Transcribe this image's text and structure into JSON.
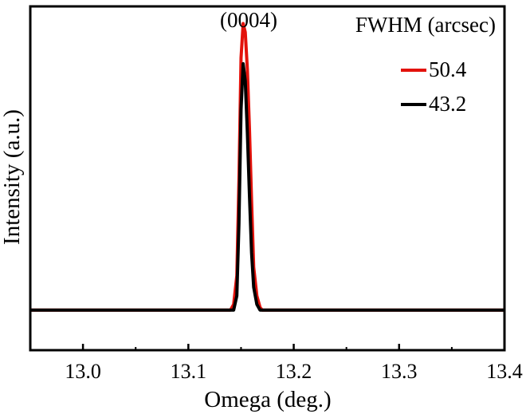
{
  "chart_data": {
    "type": "line",
    "xlabel": "Omega (deg.)",
    "ylabel": "Intensity (a.u.)",
    "xlim": [
      12.95,
      13.4
    ],
    "ylim": [
      -0.14,
      1.06
    ],
    "x_ticks": [
      "13.0",
      "13.1",
      "13.2",
      "13.3",
      "13.4"
    ],
    "x_tick_values": [
      13.0,
      13.1,
      13.2,
      13.3,
      13.4
    ],
    "x_minor_tick_values": [
      13.05,
      13.15,
      13.25,
      13.35
    ],
    "y_ticks_shown": false,
    "grid": false,
    "annotation": "(0004)",
    "legend": {
      "title": "FWHM (arcsec)",
      "placement": "top-right"
    },
    "series": [
      {
        "name": "50.4",
        "color": "#e3120b",
        "x": [
          12.95,
          13.1,
          13.14,
          13.143,
          13.146,
          13.148,
          13.15,
          13.152,
          13.154,
          13.156,
          13.158,
          13.16,
          13.162,
          13.165,
          13.168,
          13.17,
          13.2,
          13.3,
          13.4
        ],
        "y": [
          0.0,
          0.0,
          0.0,
          0.02,
          0.12,
          0.45,
          0.88,
          1.0,
          0.97,
          0.84,
          0.63,
          0.38,
          0.15,
          0.05,
          0.01,
          0.0,
          0.0,
          0.0,
          0.0
        ]
      },
      {
        "name": "43.2",
        "color": "#000000",
        "x": [
          12.95,
          13.1,
          13.143,
          13.146,
          13.148,
          13.15,
          13.152,
          13.154,
          13.156,
          13.158,
          13.16,
          13.162,
          13.165,
          13.168,
          13.2,
          13.4
        ],
        "y": [
          0.0,
          0.0,
          0.0,
          0.05,
          0.3,
          0.7,
          0.86,
          0.8,
          0.62,
          0.4,
          0.2,
          0.08,
          0.02,
          0.0,
          0.0,
          0.0
        ]
      }
    ]
  }
}
